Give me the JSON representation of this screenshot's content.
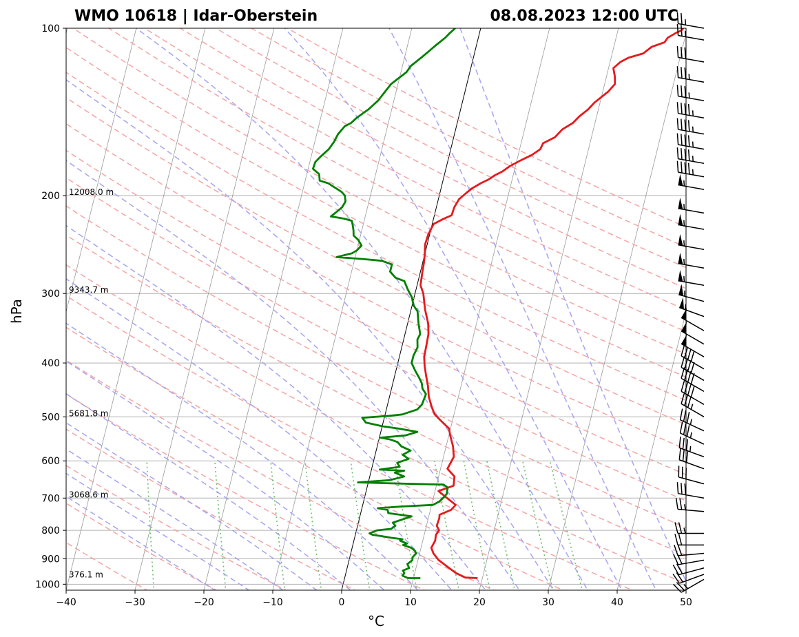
{
  "title_left": "WMO 10618 | Idar-Oberstein",
  "title_right": "08.08.2023 12:00 UTC",
  "chart_data": {
    "type": "line",
    "xlabel": "°C",
    "ylabel": "hPa",
    "xlim": [
      -40,
      50
    ],
    "ylim": [
      1025,
      100
    ],
    "y_scale": "log",
    "x_ticks": [
      -40,
      -30,
      -20,
      -10,
      0,
      10,
      20,
      30,
      40,
      50
    ],
    "x_tick_labels": [
      "−40",
      "−30",
      "−20",
      "−10",
      "0",
      "10",
      "20",
      "30",
      "40",
      "50"
    ],
    "y_ticks": [
      100,
      200,
      300,
      400,
      500,
      600,
      700,
      800,
      900,
      1000
    ],
    "y_tick_labels": [
      "100",
      "200",
      "300",
      "400",
      "500",
      "600",
      "700",
      "800",
      "900",
      "1000"
    ],
    "height_labels": [
      {
        "p": 200,
        "text": "12008.0 m"
      },
      {
        "p": 300,
        "text": "9343.7 m"
      },
      {
        "p": 500,
        "text": "5681.8 m"
      },
      {
        "p": 700,
        "text": "3068.6 m"
      },
      {
        "p": 975,
        "text": "376.1 m"
      }
    ],
    "series": [
      {
        "color": "#e41a1c",
        "points": [
          [
            19.3,
            975
          ],
          [
            17.5,
            973
          ],
          [
            16,
            955
          ],
          [
            14.5,
            930
          ],
          [
            13,
            905
          ],
          [
            12,
            880
          ],
          [
            11.5,
            860
          ],
          [
            11.8,
            835
          ],
          [
            11.7,
            815
          ],
          [
            12,
            800
          ],
          [
            11.5,
            785
          ],
          [
            11.6,
            760
          ],
          [
            11.5,
            750
          ],
          [
            13,
            735
          ],
          [
            13.5,
            720
          ],
          [
            12,
            700
          ],
          [
            10.5,
            680
          ],
          [
            12.5,
            665
          ],
          [
            12.3,
            640
          ],
          [
            11,
            620
          ],
          [
            11.5,
            590
          ],
          [
            11,
            565
          ],
          [
            10.2,
            540
          ],
          [
            9.8,
            525
          ],
          [
            8.5,
            510
          ],
          [
            7.2,
            495
          ],
          [
            6.5,
            480
          ],
          [
            5.7,
            460
          ],
          [
            5.2,
            440
          ],
          [
            4.5,
            420
          ],
          [
            4,
            405
          ],
          [
            3.6,
            390
          ],
          [
            3.5,
            370
          ],
          [
            3.4,
            355
          ],
          [
            3,
            340
          ],
          [
            2,
            320
          ],
          [
            1.2,
            300
          ],
          [
            0.5,
            290
          ],
          [
            0.3,
            275
          ],
          [
            0.2,
            265
          ],
          [
            0,
            255
          ],
          [
            -0.3,
            245
          ],
          [
            -0.2,
            235
          ],
          [
            0.2,
            225
          ],
          [
            1.5,
            220
          ],
          [
            2.5,
            217
          ],
          [
            2.6,
            210
          ],
          [
            3,
            203
          ],
          [
            3.8,
            198
          ],
          [
            4.5,
            194
          ],
          [
            5.6,
            190
          ],
          [
            6.6,
            187
          ],
          [
            7.3,
            184
          ],
          [
            8.3,
            181
          ],
          [
            9.2,
            177
          ],
          [
            10.5,
            173
          ],
          [
            12,
            169
          ],
          [
            13,
            165
          ],
          [
            13.2,
            161
          ],
          [
            14.7,
            157
          ],
          [
            15.5,
            152
          ],
          [
            16.8,
            148
          ],
          [
            17.5,
            144
          ],
          [
            18.5,
            140
          ],
          [
            19.2,
            136
          ],
          [
            20.8,
            130
          ],
          [
            21.5,
            126
          ],
          [
            21.2,
            122
          ],
          [
            20.7,
            118
          ],
          [
            21.5,
            115
          ],
          [
            22.5,
            113
          ],
          [
            24.5,
            111
          ],
          [
            25.5,
            108
          ],
          [
            27.2,
            106
          ],
          [
            27.5,
            104
          ],
          [
            28.5,
            102
          ],
          [
            29.2,
            101
          ],
          [
            29.4,
            100
          ]
        ]
      },
      {
        "color": "#008000",
        "points": [
          [
            11,
            975
          ],
          [
            9.2,
            975
          ],
          [
            8.3,
            965
          ],
          [
            8.5,
            955
          ],
          [
            8.2,
            945
          ],
          [
            9,
            935
          ],
          [
            8.6,
            920
          ],
          [
            9.2,
            905
          ],
          [
            9.1,
            895
          ],
          [
            9.5,
            880
          ],
          [
            9.2,
            870
          ],
          [
            8.6,
            860
          ],
          [
            7.3,
            850
          ],
          [
            7.8,
            845
          ],
          [
            6.7,
            835
          ],
          [
            7,
            830
          ],
          [
            5.3,
            825
          ],
          [
            4,
            820
          ],
          [
            2.5,
            815
          ],
          [
            2,
            810
          ],
          [
            3,
            800
          ],
          [
            5,
            795
          ],
          [
            5.5,
            785
          ],
          [
            5,
            775
          ],
          [
            7.5,
            755
          ],
          [
            4,
            745
          ],
          [
            3.8,
            735
          ],
          [
            2.3,
            730
          ],
          [
            5.5,
            725
          ],
          [
            10.2,
            720
          ],
          [
            11,
            710
          ],
          [
            11.4,
            700
          ],
          [
            11.8,
            688
          ],
          [
            11.7,
            670
          ],
          [
            11,
            662
          ],
          [
            6.6,
            660
          ],
          [
            2.5,
            658
          ],
          [
            -1.5,
            656
          ],
          [
            3,
            650
          ],
          [
            5,
            640
          ],
          [
            3.5,
            630
          ],
          [
            4.8,
            625
          ],
          [
            1.2,
            622
          ],
          [
            4,
            615
          ],
          [
            3.5,
            605
          ],
          [
            5,
            595
          ],
          [
            4,
            585
          ],
          [
            5,
            575
          ],
          [
            3.5,
            565
          ],
          [
            2.8,
            555
          ],
          [
            1.6,
            549
          ],
          [
            0.2,
            545
          ],
          [
            3.7,
            540
          ],
          [
            5.3,
            532
          ],
          [
            2.5,
            525
          ],
          [
            0.1,
            520
          ],
          [
            -2.5,
            512
          ],
          [
            -3.2,
            502
          ],
          [
            0.6,
            498
          ],
          [
            2.5,
            495
          ],
          [
            4.5,
            485
          ],
          [
            5,
            475
          ],
          [
            5.2,
            455
          ],
          [
            4.5,
            445
          ],
          [
            4.2,
            435
          ],
          [
            3.6,
            425
          ],
          [
            2.8,
            413
          ],
          [
            2,
            400
          ],
          [
            2,
            388
          ],
          [
            2.3,
            375
          ],
          [
            2,
            363
          ],
          [
            2.2,
            355
          ],
          [
            1.6,
            340
          ],
          [
            1,
            323
          ],
          [
            0.2,
            315
          ],
          [
            -0.3,
            305
          ],
          [
            -1.2,
            295
          ],
          [
            -2,
            285
          ],
          [
            -3.4,
            281
          ],
          [
            -4.4,
            274
          ],
          [
            -4.4,
            266
          ],
          [
            -6,
            262
          ],
          [
            -9,
            260
          ],
          [
            -12.7,
            258
          ],
          [
            -10.6,
            254
          ],
          [
            -10,
            251
          ],
          [
            -9.5,
            246
          ],
          [
            -10.2,
            240
          ],
          [
            -11,
            236
          ],
          [
            -11.2,
            231
          ],
          [
            -11.5,
            226
          ],
          [
            -11.8,
            222
          ],
          [
            -13,
            220
          ],
          [
            -15,
            218
          ],
          [
            -14.5,
            215
          ],
          [
            -13.7,
            210
          ],
          [
            -13.4,
            205
          ],
          [
            -13.7,
            200
          ],
          [
            -14.3,
            197
          ],
          [
            -15.6,
            193
          ],
          [
            -16.6,
            190
          ],
          [
            -17.9,
            188
          ],
          [
            -18.2,
            183
          ],
          [
            -19.3,
            179
          ],
          [
            -19.2,
            174
          ],
          [
            -18.6,
            170
          ],
          [
            -17.7,
            165
          ],
          [
            -17.2,
            160
          ],
          [
            -16.9,
            155
          ],
          [
            -16.2,
            150
          ],
          [
            -15.4,
            148
          ],
          [
            -14.8,
            145
          ],
          [
            -13.4,
            140
          ],
          [
            -12.3,
            135
          ],
          [
            -11.6,
            130
          ],
          [
            -11,
            126
          ],
          [
            -9.2,
            120
          ],
          [
            -8.8,
            117
          ],
          [
            -7.6,
            113
          ],
          [
            -6.7,
            110
          ],
          [
            -5.8,
            107
          ],
          [
            -4.8,
            104
          ],
          [
            -4.3,
            102
          ],
          [
            -4,
            101
          ],
          [
            -3.7,
            100
          ]
        ]
      }
    ],
    "wind_barbs": [
      {
        "p": 980,
        "dir": 240,
        "speed": 25
      },
      {
        "p": 960,
        "dir": 250,
        "speed": 20
      },
      {
        "p": 935,
        "dir": 255,
        "speed": 20
      },
      {
        "p": 905,
        "dir": 260,
        "speed": 20
      },
      {
        "p": 880,
        "dir": 265,
        "speed": 20
      },
      {
        "p": 850,
        "dir": 270,
        "speed": 20
      },
      {
        "p": 810,
        "dir": 270,
        "speed": 25
      },
      {
        "p": 740,
        "dir": 275,
        "speed": 25
      },
      {
        "p": 700,
        "dir": 280,
        "speed": 30
      },
      {
        "p": 660,
        "dir": 285,
        "speed": 30
      },
      {
        "p": 620,
        "dir": 290,
        "speed": 30
      },
      {
        "p": 590,
        "dir": 290,
        "speed": 35
      },
      {
        "p": 560,
        "dir": 295,
        "speed": 35
      },
      {
        "p": 530,
        "dir": 295,
        "speed": 35
      },
      {
        "p": 500,
        "dir": 300,
        "speed": 35
      },
      {
        "p": 475,
        "dir": 300,
        "speed": 40
      },
      {
        "p": 450,
        "dir": 300,
        "speed": 40
      },
      {
        "p": 430,
        "dir": 300,
        "speed": 40
      },
      {
        "p": 410,
        "dir": 300,
        "speed": 40
      },
      {
        "p": 390,
        "dir": 300,
        "speed": 50
      },
      {
        "p": 370,
        "dir": 300,
        "speed": 50
      },
      {
        "p": 350,
        "dir": 300,
        "speed": 50
      },
      {
        "p": 330,
        "dir": 290,
        "speed": 55
      },
      {
        "p": 310,
        "dir": 285,
        "speed": 55
      },
      {
        "p": 290,
        "dir": 280,
        "speed": 55
      },
      {
        "p": 270,
        "dir": 280,
        "speed": 55
      },
      {
        "p": 250,
        "dir": 280,
        "speed": 55
      },
      {
        "p": 230,
        "dir": 280,
        "speed": 55
      },
      {
        "p": 215,
        "dir": 280,
        "speed": 55
      },
      {
        "p": 195,
        "dir": 280,
        "speed": 55
      },
      {
        "p": 185,
        "dir": 280,
        "speed": 45
      },
      {
        "p": 175,
        "dir": 280,
        "speed": 45
      },
      {
        "p": 165,
        "dir": 280,
        "speed": 45
      },
      {
        "p": 155,
        "dir": 280,
        "speed": 45
      },
      {
        "p": 145,
        "dir": 280,
        "speed": 45
      },
      {
        "p": 135,
        "dir": 280,
        "speed": 35
      },
      {
        "p": 125,
        "dir": 280,
        "speed": 35
      },
      {
        "p": 115,
        "dir": 280,
        "speed": 30
      },
      {
        "p": 105,
        "dir": 280,
        "speed": 25
      },
      {
        "p": 100,
        "dir": 280,
        "speed": 25
      }
    ],
    "colors": {
      "temperature": "#e41a1c",
      "dewpoint": "#008000",
      "dry_adiabats": "#f4a0a0",
      "moist_adiabats": "#a0a0f0",
      "mixing_ratio": "#6abf69",
      "isotherms": "#808080",
      "grid": "#b0b0b0"
    }
  }
}
